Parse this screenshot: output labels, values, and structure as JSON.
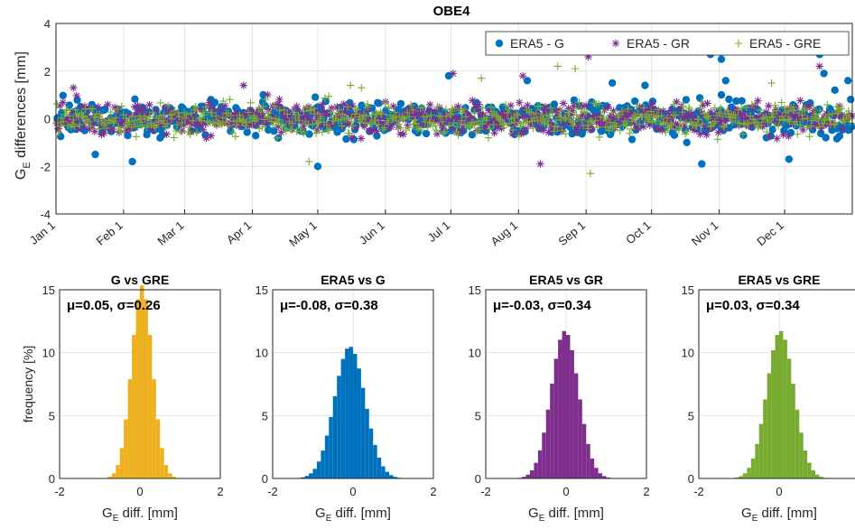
{
  "chart_data": [
    {
      "type": "scatter",
      "title": "OBE4",
      "ylabel_main": "G",
      "ylabel_sub": "E",
      "ylabel_rest": " differences [mm]",
      "ylim": [
        -4,
        4
      ],
      "yticks": [
        -4,
        -2,
        0,
        2,
        4
      ],
      "xlim_days": [
        0,
        365
      ],
      "xticks": [
        {
          "label": "Jan 1",
          "day": 0
        },
        {
          "label": "Feb 1",
          "day": 31
        },
        {
          "label": "Mar 1",
          "day": 59
        },
        {
          "label": "Apr 1",
          "day": 90
        },
        {
          "label": "May 1",
          "day": 120
        },
        {
          "label": "Jun 1",
          "day": 151
        },
        {
          "label": "Jul 1",
          "day": 181
        },
        {
          "label": "Aug 1",
          "day": 212
        },
        {
          "label": "Sep 1",
          "day": 243
        },
        {
          "label": "Oct 1",
          "day": 273
        },
        {
          "label": "Nov 1",
          "day": 304
        },
        {
          "label": "Dec 1",
          "day": 334
        }
      ],
      "grid": true,
      "legend_position": "top-right",
      "series": [
        {
          "name": "ERA5 - G",
          "marker": "circle",
          "color": "#0072BD",
          "spread": 0.36
        },
        {
          "name": "ERA5 - GR",
          "marker": "asterisk",
          "color": "#7E2F8E",
          "spread": 0.33
        },
        {
          "name": "ERA5 - GRE",
          "marker": "plus",
          "color": "#77AC30",
          "spread": 0.33
        }
      ],
      "outliers": [
        {
          "series": 0,
          "day": 300,
          "value": 2.7
        },
        {
          "series": 0,
          "day": 305,
          "value": 2.5
        },
        {
          "series": 0,
          "day": 307,
          "value": 1.6
        },
        {
          "series": 0,
          "day": 305,
          "value": 1.0
        },
        {
          "series": 0,
          "day": 350,
          "value": 2.7
        },
        {
          "series": 0,
          "day": 352,
          "value": 1.9
        },
        {
          "series": 0,
          "day": 357,
          "value": 1.2
        },
        {
          "series": 0,
          "day": 363,
          "value": 1.6
        },
        {
          "series": 0,
          "day": 120,
          "value": -2.0
        },
        {
          "series": 0,
          "day": 35,
          "value": -1.8
        },
        {
          "series": 0,
          "day": 18,
          "value": -1.5
        },
        {
          "series": 0,
          "day": 296,
          "value": -1.9
        },
        {
          "series": 0,
          "day": 336,
          "value": -1.7
        },
        {
          "series": 0,
          "day": 270,
          "value": 1.4
        },
        {
          "series": 0,
          "day": 216,
          "value": 1.6
        },
        {
          "series": 0,
          "day": 180,
          "value": 1.8
        },
        {
          "series": 0,
          "day": 255,
          "value": 1.5
        },
        {
          "series": 0,
          "day": 95,
          "value": 1.0
        },
        {
          "series": 1,
          "day": 244,
          "value": 2.6
        },
        {
          "series": 1,
          "day": 182,
          "value": 1.9
        },
        {
          "series": 1,
          "day": 86,
          "value": 1.4
        },
        {
          "series": 1,
          "day": 222,
          "value": -1.9
        },
        {
          "series": 1,
          "day": 350,
          "value": 2.2
        },
        {
          "series": 1,
          "day": 8,
          "value": 1.3
        },
        {
          "series": 1,
          "day": 214,
          "value": 1.8
        },
        {
          "series": 2,
          "day": 243,
          "value": 2.9
        },
        {
          "series": 2,
          "day": 238,
          "value": 2.1
        },
        {
          "series": 2,
          "day": 230,
          "value": 2.2
        },
        {
          "series": 2,
          "day": 245,
          "value": -2.3
        },
        {
          "series": 2,
          "day": 116,
          "value": -1.8
        },
        {
          "series": 2,
          "day": 135,
          "value": 1.4
        },
        {
          "series": 2,
          "day": 140,
          "value": 1.3
        },
        {
          "series": 2,
          "day": 195,
          "value": 1.7
        },
        {
          "series": 2,
          "day": 328,
          "value": 1.5
        }
      ]
    },
    {
      "type": "bar",
      "title": "G vs GRE",
      "annotation": "μ=0.05, σ=0.26",
      "mu": 0.05,
      "sigma": 0.26,
      "color": "#EDB120",
      "xlim": [
        -2,
        2
      ],
      "ylim": [
        0,
        15
      ],
      "xticks": [
        -2,
        0,
        2
      ],
      "yticks": [
        0,
        5,
        10,
        15
      ],
      "xlabel_main": "G",
      "xlabel_sub": "E",
      "xlabel_rest": " diff. [mm]",
      "ylabel": "frequency [%]"
    },
    {
      "type": "bar",
      "title": "ERA5 vs G",
      "annotation": "μ=-0.08, σ=0.38",
      "mu": -0.08,
      "sigma": 0.38,
      "color": "#0072BD",
      "xlim": [
        -2,
        2
      ],
      "ylim": [
        0,
        15
      ],
      "xticks": [
        -2,
        0,
        2
      ],
      "yticks": [
        0,
        5,
        10,
        15
      ],
      "xlabel_main": "G",
      "xlabel_sub": "E",
      "xlabel_rest": " diff. [mm]",
      "ylabel": ""
    },
    {
      "type": "bar",
      "title": "ERA5 vs GR",
      "annotation": "μ=-0.03, σ=0.34",
      "mu": -0.03,
      "sigma": 0.34,
      "color": "#7E2F8E",
      "xlim": [
        -2,
        2
      ],
      "ylim": [
        0,
        15
      ],
      "xticks": [
        -2,
        0,
        2
      ],
      "yticks": [
        0,
        5,
        10,
        15
      ],
      "xlabel_main": "G",
      "xlabel_sub": "E",
      "xlabel_rest": " diff. [mm]",
      "ylabel": ""
    },
    {
      "type": "bar",
      "title": "ERA5 vs GRE",
      "annotation": "μ=0.03, σ=0.34",
      "mu": 0.03,
      "sigma": 0.34,
      "color": "#77AC30",
      "xlim": [
        -2,
        2
      ],
      "ylim": [
        0,
        15
      ],
      "xticks": [
        -2,
        0,
        2
      ],
      "yticks": [
        0,
        5,
        10,
        15
      ],
      "xlabel_main": "G",
      "xlabel_sub": "E",
      "xlabel_rest": " diff. [mm]",
      "ylabel": ""
    }
  ]
}
